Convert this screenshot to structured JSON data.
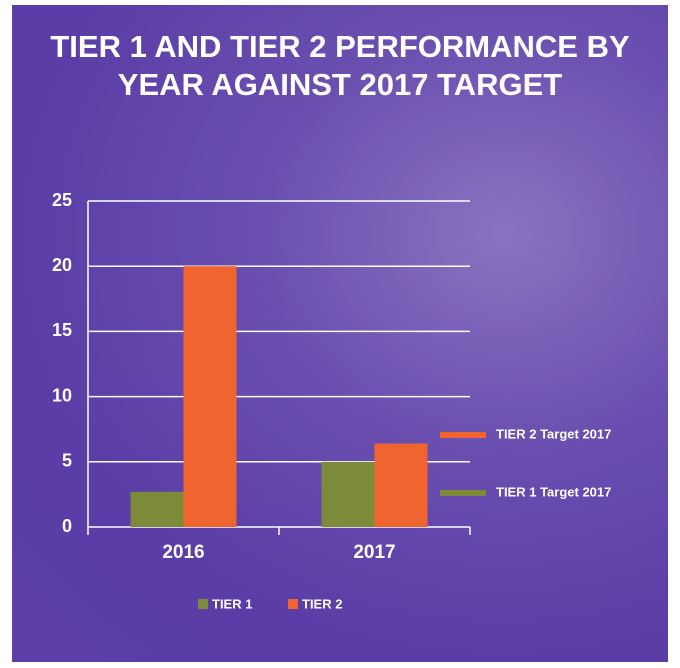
{
  "chart_data": {
    "type": "bar",
    "title": "TIER 1 AND TIER 2  PERFORMANCE BY YEAR AGAINST 2017 TARGET",
    "categories": [
      "2016",
      "2017"
    ],
    "series": [
      {
        "name": "TIER 1",
        "color": "#7c8a3a",
        "values": [
          2.7,
          5
        ]
      },
      {
        "name": "TIER 2",
        "color": "#f0652f",
        "values": [
          20,
          6.4
        ]
      }
    ],
    "ylim": [
      0,
      25
    ],
    "yticks": [
      0,
      5,
      10,
      15,
      20,
      25
    ],
    "grid": true,
    "annotations": [
      {
        "text": "TIER 2 Target 2017",
        "color": "#f0652f"
      },
      {
        "text": "TIER 1 Target 2017",
        "color": "#7c8a3a"
      }
    ]
  }
}
